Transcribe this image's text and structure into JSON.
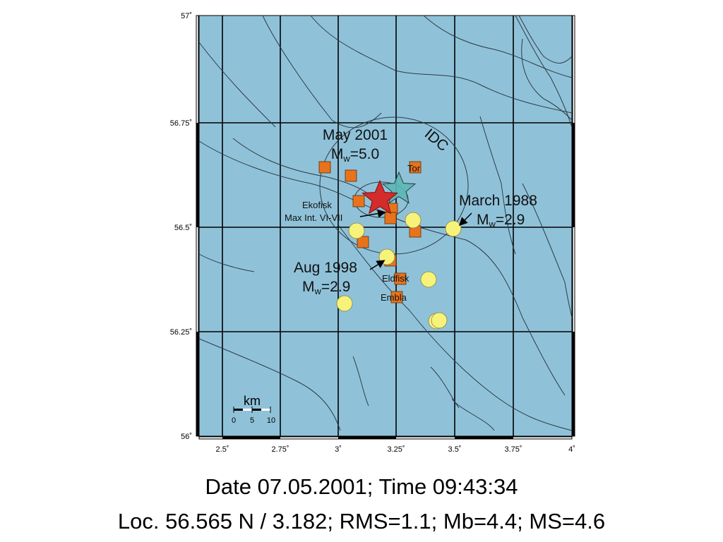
{
  "colors": {
    "sea": "#8fc2d9",
    "square": "#e8731c",
    "circle": "#f7f27a",
    "main_star": "#d42b2b",
    "idc_star": "#5ab8b4",
    "fault": "#2f3b44"
  },
  "axes": {
    "lat_ticks": [
      "57˚",
      "56.75˚",
      "56.5˚",
      "56.25˚",
      "56˚"
    ],
    "lon_ticks": [
      "2.5˚",
      "2.75˚",
      "3˚",
      "3.25˚",
      "3.5˚",
      "3.75˚",
      "4˚"
    ]
  },
  "labels": {
    "may2001_line1": "May 2001",
    "may2001_line2_pre": "M",
    "may2001_line2_sub": "w",
    "may2001_line2_post": "=5.0",
    "idc": "IDC",
    "tor": "Tor",
    "ekofisk": "Ekofisk",
    "max_int": "Max Int. VI-VII",
    "march1988_line1": "March 1988",
    "march1988_line2_pre": "M",
    "march1988_line2_sub": "w",
    "march1988_line2_post": "=2.9",
    "aug1998_line1": "Aug 1998",
    "aug1998_line2_pre": "M",
    "aug1998_line2_sub": "w",
    "aug1998_line2_post": "=2.9",
    "eldfisk": "Eldfisk",
    "embla": "Embla"
  },
  "scale_bar": {
    "unit": "km",
    "ticks": [
      "0",
      "5",
      "10"
    ]
  },
  "caption": {
    "line1": "Date 07.05.2001; Time 09:43:34",
    "line2": "Loc. 56.565 N / 3.182; RMS=1.1; Mb=4.4; MS=4.6"
  },
  "events": {
    "main_epicenter": {
      "name": "May 2001",
      "lat": 56.565,
      "lon": 3.182,
      "mw": 5.0
    },
    "idc_epicenter": {
      "name": "IDC",
      "lat": 56.6,
      "lon": 3.245
    },
    "march_1988": {
      "lat": 56.5,
      "lon": 3.495,
      "mw": 2.9
    },
    "aug_1998": {
      "lat": 56.435,
      "lon": 3.205,
      "mw": 2.9
    }
  }
}
